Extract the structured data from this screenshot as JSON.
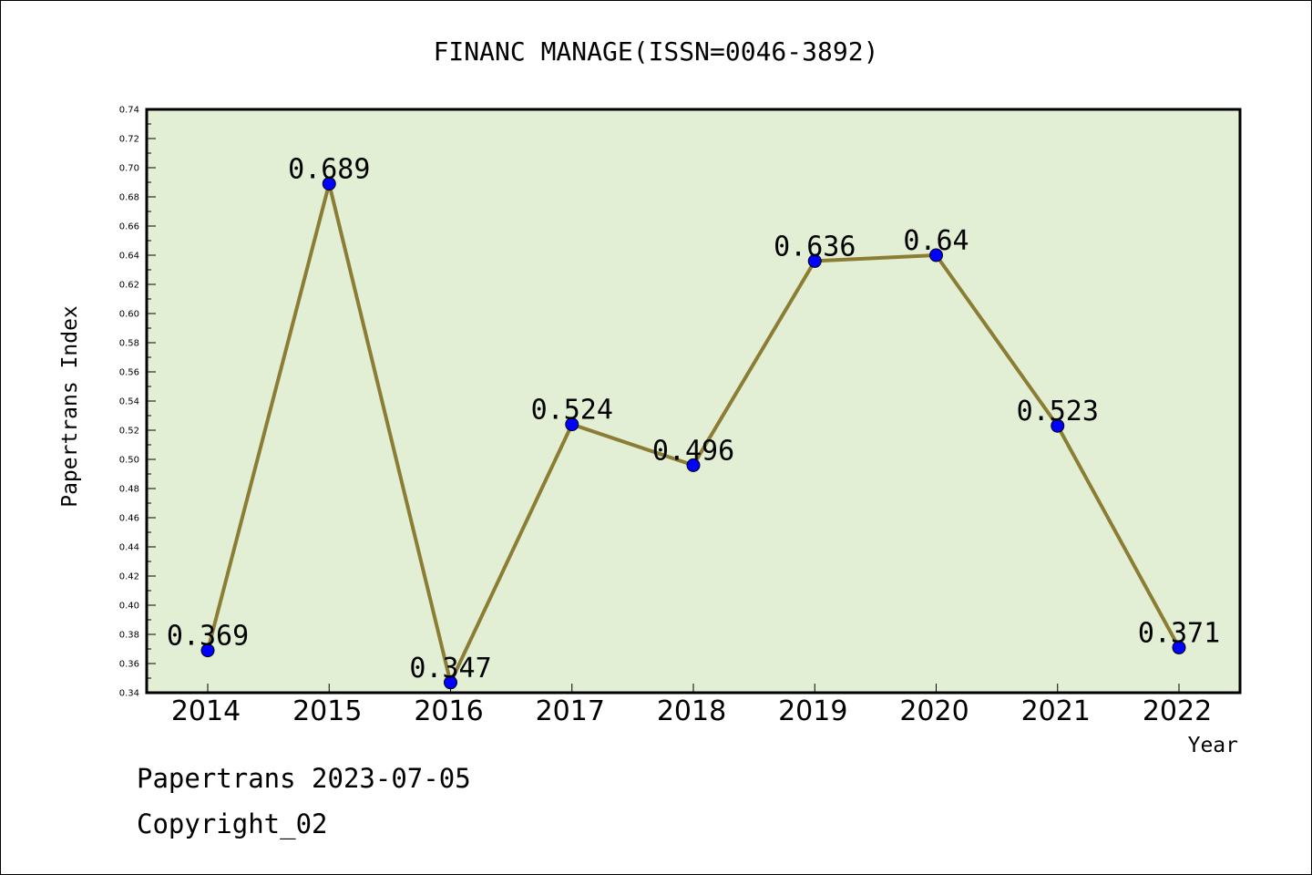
{
  "chart_data": {
    "type": "line",
    "title": "FINANC MANAGE(ISSN=0046-3892)",
    "xlabel": "Year",
    "ylabel": "Papertrans Index",
    "x": [
      "2014",
      "2015",
      "2016",
      "2017",
      "2018",
      "2019",
      "2020",
      "2021",
      "2022"
    ],
    "values": [
      0.369,
      0.689,
      0.347,
      0.524,
      0.496,
      0.636,
      0.64,
      0.523,
      0.371
    ],
    "data_labels": [
      "0.369",
      "0.689",
      "0.347",
      "0.524",
      "0.496",
      "0.636",
      "0.64",
      "0.523",
      "0.371"
    ],
    "ylim": [
      0.34,
      0.74
    ],
    "yticks": [
      "0.34",
      "0.36",
      "0.38",
      "0.40",
      "0.42",
      "0.44",
      "0.46",
      "0.48",
      "0.50",
      "0.52",
      "0.54",
      "0.56",
      "0.58",
      "0.60",
      "0.62",
      "0.64",
      "0.66",
      "0.68",
      "0.70",
      "0.72",
      "0.74"
    ],
    "grid": false,
    "colors": {
      "plot_background": "#e2efd5",
      "line": "#8b7d33",
      "marker": "#0000ff"
    }
  },
  "footer": {
    "line1": "Papertrans 2023-07-05",
    "line2": "Copyright_02"
  }
}
